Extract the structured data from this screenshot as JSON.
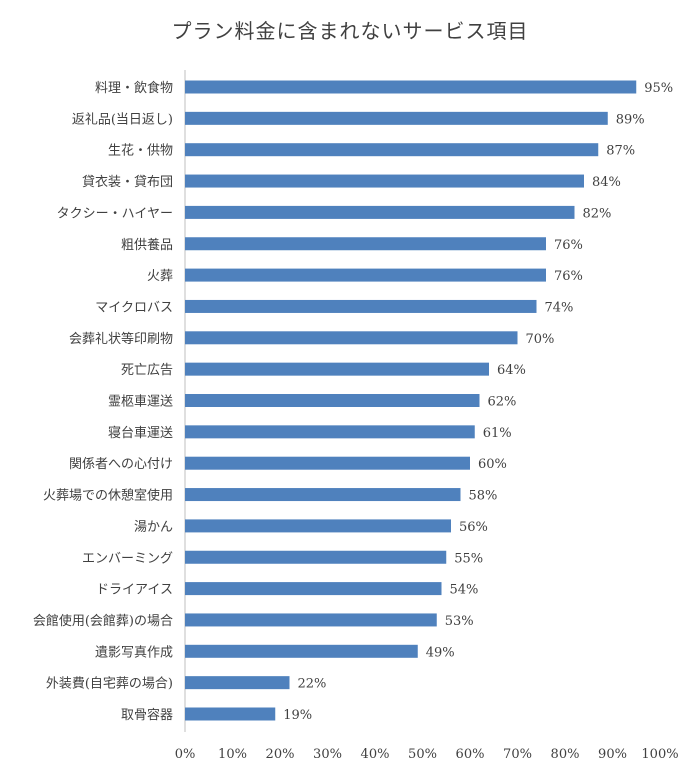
{
  "chart_data": {
    "type": "bar",
    "orientation": "horizontal",
    "title": "プラン料金に含まれないサービス項目",
    "categories": [
      "料理・飲食物",
      "返礼品(当日返し)",
      "生花・供物",
      "貸衣装・貸布団",
      "タクシー・ハイヤー",
      "粗供養品",
      "火葬",
      "マイクロバス",
      "会葬礼状等印刷物",
      "死亡広告",
      "霊柩車運送",
      "寝台車運送",
      "関係者への心付け",
      "火葬場での休憩室使用",
      "湯かん",
      "エンバーミング",
      "ドライアイス",
      "会館使用(会館葬)の場合",
      "遺影写真作成",
      "外装費(自宅葬の場合)",
      "取骨容器"
    ],
    "values": [
      95,
      89,
      87,
      84,
      82,
      76,
      76,
      74,
      70,
      64,
      62,
      61,
      60,
      58,
      56,
      55,
      54,
      53,
      49,
      22,
      19
    ],
    "value_labels": [
      "95%",
      "89%",
      "87%",
      "84%",
      "82%",
      "76%",
      "76%",
      "74%",
      "70%",
      "64%",
      "62%",
      "61%",
      "60%",
      "58%",
      "56%",
      "55%",
      "54%",
      "53%",
      "49%",
      "22%",
      "19%"
    ],
    "xlim": [
      0,
      100
    ],
    "x_ticks": [
      0,
      10,
      20,
      30,
      40,
      50,
      60,
      70,
      80,
      90,
      100
    ],
    "x_tick_labels": [
      "0%",
      "10%",
      "20%",
      "30%",
      "40%",
      "50%",
      "60%",
      "70%",
      "80%",
      "90%",
      "100%"
    ],
    "xlabel": "",
    "ylabel": "",
    "grid": false,
    "legend": "none",
    "colors": {
      "bar": "#4f81bd",
      "axis": "#bfbfbf",
      "text": "#404040"
    }
  }
}
